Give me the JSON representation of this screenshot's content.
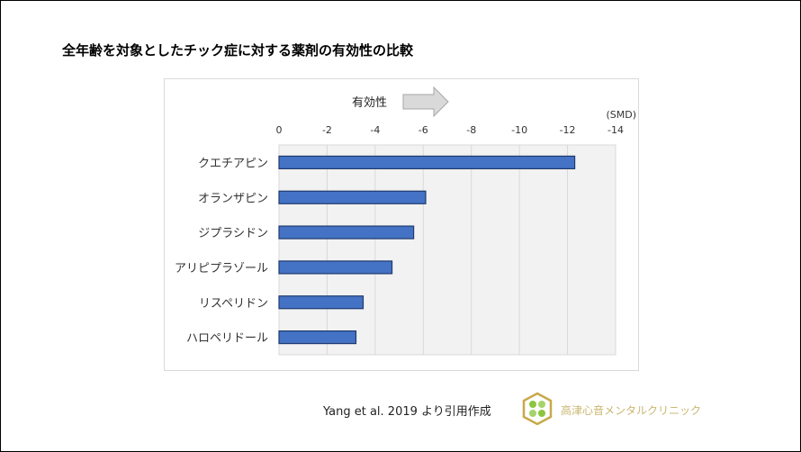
{
  "title": "全年齢を対象としたチック症に対する薬剤の有効性の比較",
  "citation": "Yang et al. 2019 より引用作成",
  "logo_text": "高津心音メンタルクリニック",
  "chart_data": {
    "type": "bar",
    "orientation": "horizontal",
    "title": "全年齢を対象としたチック症に対する薬剤の有効性の比較",
    "annotation": "有効性",
    "unit_label": "(SMD)",
    "categories": [
      "クエチアピン",
      "オランザピン",
      "ジプラシドン",
      "アリピプラゾール",
      "リスペリドン",
      "ハロペリドール"
    ],
    "values": [
      -12.3,
      -6.1,
      -5.6,
      -4.7,
      -3.5,
      -3.2
    ],
    "xlim": [
      0,
      -14
    ],
    "ticks": [
      "0",
      "-2",
      "-4",
      "-6",
      "-8",
      "-10",
      "-12",
      "-14"
    ],
    "tick_values": [
      0,
      -2,
      -4,
      -6,
      -8,
      -10,
      -12,
      -14
    ],
    "axis_position": "top",
    "grid": true,
    "bar_color": "#4472c4"
  }
}
